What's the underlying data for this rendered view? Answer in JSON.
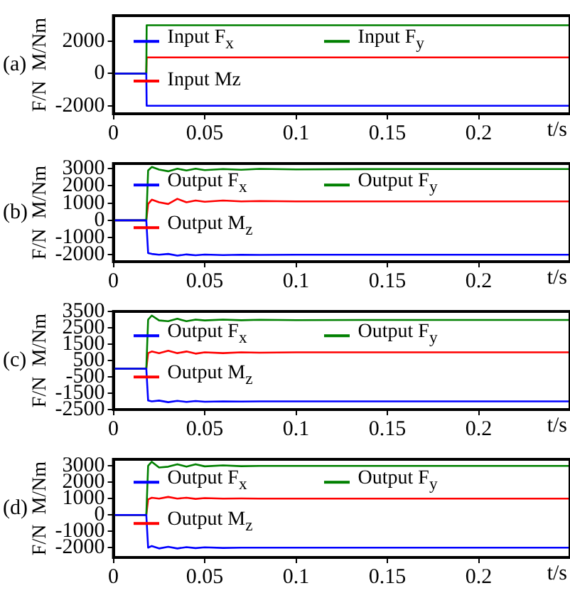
{
  "chart_data": [
    {
      "type": "line",
      "ylabel": "F/N  M/Nm",
      "xlabel": "t/s",
      "annotations": [
        "(a)"
      ],
      "xlim": [
        0,
        0.25
      ],
      "xticks": [
        0,
        0.05,
        0.1,
        0.15,
        0.2
      ],
      "ylim": [
        -2500,
        3600
      ],
      "yticks": [
        -2000,
        0,
        2000
      ],
      "grid": false,
      "legend": "top left",
      "marker": "none",
      "line_style": "solid",
      "series": [
        {
          "name": "Input F$_{x}$",
          "color": "#0000ff",
          "x": [
            0,
            0.018,
            0.0182,
            0.25
          ],
          "values": [
            0,
            0,
            -2000,
            -2000
          ]
        },
        {
          "name": "Input F$_{y}$",
          "color": "#008000",
          "x": [
            0,
            0.018,
            0.0182,
            0.25
          ],
          "values": [
            0,
            0,
            3000,
            3000
          ]
        },
        {
          "name": "Input Mz",
          "color": "#ff0000",
          "x": [
            0,
            0.018,
            0.0182,
            0.25
          ],
          "values": [
            0,
            0,
            1000,
            1000
          ]
        }
      ]
    },
    {
      "type": "line",
      "ylabel": "F/N  M/Nm",
      "xlabel": "t/s",
      "annotations": [
        "(b)"
      ],
      "xlim": [
        0,
        0.25
      ],
      "xticks": [
        0,
        0.05,
        0.1,
        0.15,
        0.2
      ],
      "ylim": [
        -2400,
        3300
      ],
      "yticks": [
        -2000,
        -1000,
        0,
        1000,
        2000,
        3000
      ],
      "grid": false,
      "legend": "top left",
      "marker": "none",
      "line_style": "solid",
      "series": [
        {
          "name": "Output F$_{x}$",
          "color": "#0000ff",
          "x": [
            0,
            0.018,
            0.019,
            0.021,
            0.025,
            0.03,
            0.035,
            0.04,
            0.045,
            0.05,
            0.06,
            0.07,
            0.08,
            0.1,
            0.15,
            0.2,
            0.25
          ],
          "values": [
            0,
            0,
            -1900,
            -1950,
            -2000,
            -1950,
            -2050,
            -1980,
            -2030,
            -1990,
            -2020,
            -2000,
            -2010,
            -2000,
            -2000,
            -2000,
            -2000
          ]
        },
        {
          "name": "Output F$_{y}$",
          "color": "#008000",
          "x": [
            0,
            0.018,
            0.019,
            0.021,
            0.025,
            0.03,
            0.035,
            0.04,
            0.045,
            0.05,
            0.06,
            0.07,
            0.08,
            0.1,
            0.15,
            0.2,
            0.25
          ],
          "values": [
            0,
            0,
            2900,
            3100,
            2950,
            2850,
            3000,
            2900,
            3000,
            2920,
            2980,
            2940,
            2990,
            2960,
            2980,
            2980,
            2980
          ]
        },
        {
          "name": "Output M$_{z}$",
          "color": "#ff0000",
          "x": [
            0,
            0.018,
            0.019,
            0.021,
            0.025,
            0.03,
            0.035,
            0.04,
            0.045,
            0.05,
            0.06,
            0.07,
            0.08,
            0.1,
            0.15,
            0.2,
            0.25
          ],
          "values": [
            0,
            0,
            950,
            1200,
            1050,
            950,
            1250,
            1050,
            1150,
            1080,
            1150,
            1100,
            1120,
            1100,
            1100,
            1100,
            1100
          ]
        }
      ]
    },
    {
      "type": "line",
      "ylabel": "F/N  M/Nm",
      "xlabel": "t/s",
      "annotations": [
        "(c)"
      ],
      "xlim": [
        0,
        0.25
      ],
      "xticks": [
        0,
        0.05,
        0.1,
        0.15,
        0.2
      ],
      "ylim": [
        -2500,
        3500
      ],
      "yticks": [
        -2500,
        -1500,
        -500,
        500,
        1500,
        2500,
        3500
      ],
      "grid": false,
      "legend": "top left",
      "marker": "none",
      "line_style": "solid",
      "series": [
        {
          "name": "Output F$_{x}$",
          "color": "#0000ff",
          "x": [
            0,
            0.018,
            0.019,
            0.021,
            0.025,
            0.03,
            0.035,
            0.04,
            0.045,
            0.05,
            0.06,
            0.07,
            0.08,
            0.1,
            0.15,
            0.2,
            0.25
          ],
          "values": [
            0,
            0,
            -1950,
            -2000,
            -1950,
            -2050,
            -1970,
            -2030,
            -1980,
            -2020,
            -2000,
            -2010,
            -2000,
            -2000,
            -2000,
            -2000,
            -2000
          ]
        },
        {
          "name": "Output F$_{y}$",
          "color": "#008000",
          "x": [
            0,
            0.018,
            0.019,
            0.021,
            0.025,
            0.03,
            0.035,
            0.04,
            0.045,
            0.05,
            0.06,
            0.07,
            0.08,
            0.1,
            0.15,
            0.2,
            0.25
          ],
          "values": [
            0,
            0,
            3000,
            3250,
            2950,
            2900,
            3050,
            2900,
            3000,
            2950,
            3000,
            2960,
            2990,
            2970,
            2980,
            2980,
            2980
          ]
        },
        {
          "name": "Output M$_{z}$",
          "color": "#ff0000",
          "x": [
            0,
            0.018,
            0.019,
            0.021,
            0.025,
            0.03,
            0.035,
            0.04,
            0.045,
            0.05,
            0.06,
            0.07,
            0.08,
            0.1,
            0.15,
            0.2,
            0.25
          ],
          "values": [
            0,
            0,
            950,
            1050,
            950,
            1100,
            950,
            1050,
            920,
            1000,
            950,
            1000,
            980,
            1000,
            1000,
            1000,
            1000
          ]
        }
      ]
    },
    {
      "type": "line",
      "ylabel": "F/N  M/Nm",
      "xlabel": "t/s",
      "annotations": [
        "(d)"
      ],
      "xlim": [
        0,
        0.25
      ],
      "xticks": [
        0,
        0.05,
        0.1,
        0.15,
        0.2
      ],
      "ylim": [
        -2600,
        3400
      ],
      "yticks": [
        -2000,
        -1000,
        0,
        1000,
        2000,
        3000
      ],
      "grid": false,
      "legend": "top left",
      "marker": "none",
      "line_style": "solid",
      "series": [
        {
          "name": "Output F$_{x}$",
          "color": "#0000ff",
          "x": [
            0,
            0.018,
            0.019,
            0.021,
            0.025,
            0.03,
            0.035,
            0.04,
            0.045,
            0.05,
            0.06,
            0.07,
            0.08,
            0.1,
            0.15,
            0.2,
            0.25
          ],
          "values": [
            0,
            0,
            -2000,
            -1900,
            -2050,
            -1950,
            -2050,
            -1970,
            -2030,
            -1980,
            -2020,
            -2000,
            -2000,
            -2000,
            -2000,
            -2000,
            -2000
          ]
        },
        {
          "name": "Output F$_{y}$",
          "color": "#008000",
          "x": [
            0,
            0.018,
            0.019,
            0.021,
            0.025,
            0.03,
            0.035,
            0.04,
            0.045,
            0.05,
            0.06,
            0.07,
            0.08,
            0.1,
            0.15,
            0.2,
            0.25
          ],
          "values": [
            0,
            0,
            3000,
            3250,
            2900,
            2950,
            3100,
            2950,
            3100,
            2970,
            3030,
            2980,
            3000,
            3000,
            3000,
            3000,
            3000
          ]
        },
        {
          "name": "Output M$_{z}$",
          "color": "#ff0000",
          "x": [
            0,
            0.018,
            0.019,
            0.021,
            0.025,
            0.03,
            0.035,
            0.04,
            0.045,
            0.05,
            0.06,
            0.07,
            0.08,
            0.1,
            0.15,
            0.2,
            0.25
          ],
          "values": [
            0,
            0,
            950,
            1050,
            1000,
            1100,
            1000,
            1050,
            980,
            1030,
            1000,
            1010,
            1000,
            1000,
            1000,
            1000,
            1000
          ]
        }
      ]
    }
  ]
}
